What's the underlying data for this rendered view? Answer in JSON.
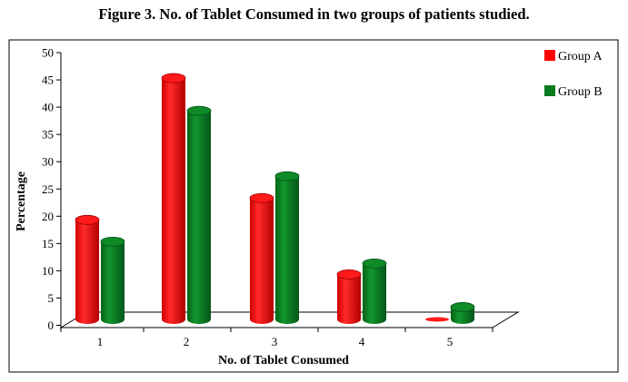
{
  "chart_data": {
    "type": "bar",
    "title": "Figure 3. No. of Tablet Consumed in two groups of patients studied.",
    "xlabel": "No. of Tablet Consumed",
    "ylabel": "Percentage",
    "categories": [
      "1",
      "2",
      "3",
      "4",
      "5"
    ],
    "series": [
      {
        "name": "Group A",
        "color": "#ff0000",
        "values": [
          20,
          46,
          24,
          10,
          0
        ]
      },
      {
        "name": "Group B",
        "color": "#0a7a1e",
        "values": [
          16,
          40,
          28,
          12,
          4
        ]
      }
    ],
    "ylim": [
      0,
      50
    ],
    "yticks": [
      0,
      5,
      10,
      15,
      20,
      25,
      30,
      35,
      40,
      45,
      50
    ],
    "grid": false,
    "legend": "top-right",
    "style": "3d-cylinder"
  }
}
